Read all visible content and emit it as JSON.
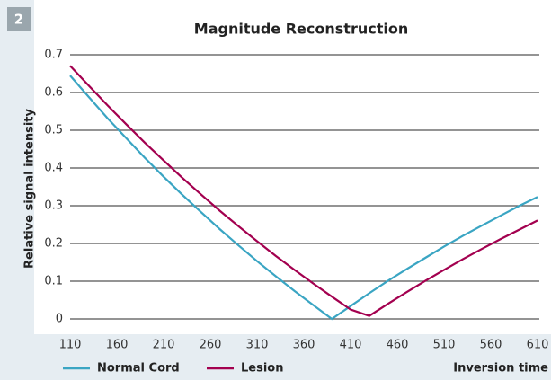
{
  "badge": "2",
  "chart_data": {
    "type": "line",
    "title": "Magnitude Reconstruction",
    "y_label": "Relative signal intensity",
    "x_label": "Inversion time",
    "x": [
      110,
      130,
      150,
      170,
      190,
      210,
      230,
      250,
      270,
      290,
      310,
      330,
      350,
      370,
      390,
      410,
      430,
      450,
      470,
      490,
      510,
      530,
      550,
      570,
      590,
      610
    ],
    "series": [
      {
        "name": "Normal Cord",
        "color": "#3aa5c3",
        "values": [
          0.645,
          0.588,
          0.532,
          0.479,
          0.427,
          0.377,
          0.329,
          0.283,
          0.238,
          0.195,
          0.153,
          0.113,
          0.074,
          0.037,
          0.0,
          0.034,
          0.068,
          0.101,
          0.132,
          0.162,
          0.192,
          0.22,
          0.247,
          0.273,
          0.299,
          0.323
        ]
      },
      {
        "name": "Lesion",
        "color": "#a3004f",
        "values": [
          0.671,
          0.618,
          0.566,
          0.516,
          0.467,
          0.42,
          0.374,
          0.33,
          0.287,
          0.246,
          0.206,
          0.167,
          0.13,
          0.094,
          0.059,
          0.025,
          0.008,
          0.04,
          0.071,
          0.101,
          0.13,
          0.158,
          0.185,
          0.211,
          0.236,
          0.261
        ]
      }
    ],
    "xlim": [
      110,
      610
    ],
    "xticks": [
      110,
      160,
      210,
      260,
      310,
      360,
      410,
      460,
      510,
      560,
      610
    ],
    "ylim": [
      0,
      0.7
    ],
    "yticks": [
      0,
      0.1,
      0.2,
      0.3,
      0.4,
      0.5,
      0.6,
      0.7
    ],
    "grid": true
  }
}
